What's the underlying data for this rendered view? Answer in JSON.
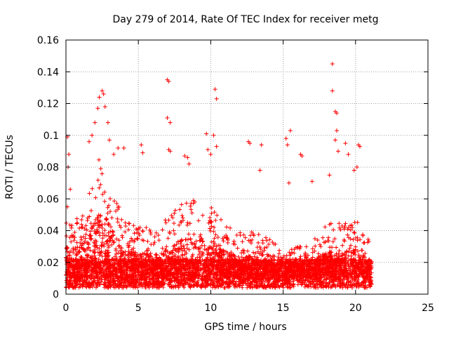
{
  "chart_data": {
    "type": "scatter",
    "title": "Day 279 of 2014, Rate Of TEC Index for receiver metg",
    "xlabel": "GPS time / hours",
    "ylabel": "ROTI / TECUs",
    "xlim": [
      0,
      25
    ],
    "ylim": [
      0,
      0.16
    ],
    "xticks": [
      0,
      5,
      10,
      15,
      20,
      25
    ],
    "yticks": [
      0,
      0.02,
      0.04,
      0.06,
      0.08,
      0.1,
      0.12,
      0.14,
      0.16
    ],
    "xtick_labels": [
      "0",
      "5",
      "10",
      "15",
      "20",
      "25"
    ],
    "ytick_labels": [
      "0",
      "0.02",
      "0.04",
      "0.06",
      "0.08",
      "0.1",
      "0.12",
      "0.14",
      "0.16"
    ],
    "grid": true,
    "marker": "+",
    "color": "#ff0000",
    "x_range_of_data": [
      0,
      21.1
    ],
    "density_profile_hours": [
      [
        0.0,
        0.05
      ],
      [
        0.5,
        0.045
      ],
      [
        1.0,
        0.05
      ],
      [
        1.5,
        0.06
      ],
      [
        2.0,
        0.08
      ],
      [
        2.5,
        0.09
      ],
      [
        3.0,
        0.075
      ],
      [
        3.5,
        0.06
      ],
      [
        4.0,
        0.045
      ],
      [
        5.0,
        0.045
      ],
      [
        6.0,
        0.04
      ],
      [
        7.0,
        0.048
      ],
      [
        8.0,
        0.058
      ],
      [
        9.0,
        0.06
      ],
      [
        10.0,
        0.055
      ],
      [
        11.0,
        0.045
      ],
      [
        12.0,
        0.04
      ],
      [
        13.0,
        0.04
      ],
      [
        14.0,
        0.035
      ],
      [
        15.0,
        0.028
      ],
      [
        16.0,
        0.03
      ],
      [
        17.0,
        0.035
      ],
      [
        18.0,
        0.045
      ],
      [
        19.0,
        0.045
      ],
      [
        20.0,
        0.048
      ],
      [
        21.0,
        0.035
      ]
    ],
    "notable_points": [
      {
        "x": 0.1,
        "y": 0.099
      },
      {
        "x": 0.2,
        "y": 0.088
      },
      {
        "x": 0.15,
        "y": 0.08
      },
      {
        "x": 0.3,
        "y": 0.066
      },
      {
        "x": 0.1,
        "y": 0.055
      },
      {
        "x": 2.3,
        "y": 0.124
      },
      {
        "x": 2.5,
        "y": 0.128
      },
      {
        "x": 2.6,
        "y": 0.126
      },
      {
        "x": 2.2,
        "y": 0.117
      },
      {
        "x": 2.7,
        "y": 0.118
      },
      {
        "x": 2.0,
        "y": 0.108
      },
      {
        "x": 1.8,
        "y": 0.1
      },
      {
        "x": 2.9,
        "y": 0.108
      },
      {
        "x": 3.0,
        "y": 0.097
      },
      {
        "x": 1.6,
        "y": 0.096
      },
      {
        "x": 3.3,
        "y": 0.088
      },
      {
        "x": 3.6,
        "y": 0.092
      },
      {
        "x": 4.0,
        "y": 0.092
      },
      {
        "x": 5.2,
        "y": 0.094
      },
      {
        "x": 5.3,
        "y": 0.089
      },
      {
        "x": 7.0,
        "y": 0.135
      },
      {
        "x": 7.1,
        "y": 0.134
      },
      {
        "x": 7.0,
        "y": 0.111
      },
      {
        "x": 7.2,
        "y": 0.108
      },
      {
        "x": 7.1,
        "y": 0.091
      },
      {
        "x": 7.2,
        "y": 0.09
      },
      {
        "x": 8.2,
        "y": 0.087
      },
      {
        "x": 8.4,
        "y": 0.086
      },
      {
        "x": 8.5,
        "y": 0.082
      },
      {
        "x": 9.7,
        "y": 0.101
      },
      {
        "x": 9.8,
        "y": 0.091
      },
      {
        "x": 10.0,
        "y": 0.088
      },
      {
        "x": 10.2,
        "y": 0.1
      },
      {
        "x": 10.3,
        "y": 0.129
      },
      {
        "x": 10.4,
        "y": 0.123
      },
      {
        "x": 10.4,
        "y": 0.093
      },
      {
        "x": 12.6,
        "y": 0.096
      },
      {
        "x": 12.7,
        "y": 0.095
      },
      {
        "x": 13.5,
        "y": 0.094
      },
      {
        "x": 13.4,
        "y": 0.078
      },
      {
        "x": 15.2,
        "y": 0.098
      },
      {
        "x": 15.3,
        "y": 0.094
      },
      {
        "x": 15.5,
        "y": 0.103
      },
      {
        "x": 15.4,
        "y": 0.07
      },
      {
        "x": 16.2,
        "y": 0.088
      },
      {
        "x": 16.3,
        "y": 0.087
      },
      {
        "x": 17.0,
        "y": 0.071
      },
      {
        "x": 18.4,
        "y": 0.145
      },
      {
        "x": 18.4,
        "y": 0.128
      },
      {
        "x": 18.6,
        "y": 0.115
      },
      {
        "x": 18.7,
        "y": 0.114
      },
      {
        "x": 18.7,
        "y": 0.103
      },
      {
        "x": 18.6,
        "y": 0.097
      },
      {
        "x": 18.8,
        "y": 0.09
      },
      {
        "x": 19.3,
        "y": 0.095
      },
      {
        "x": 19.5,
        "y": 0.088
      },
      {
        "x": 20.2,
        "y": 0.094
      },
      {
        "x": 20.3,
        "y": 0.093
      },
      {
        "x": 20.1,
        "y": 0.08
      },
      {
        "x": 18.2,
        "y": 0.075
      },
      {
        "x": 19.9,
        "y": 0.078
      }
    ]
  }
}
